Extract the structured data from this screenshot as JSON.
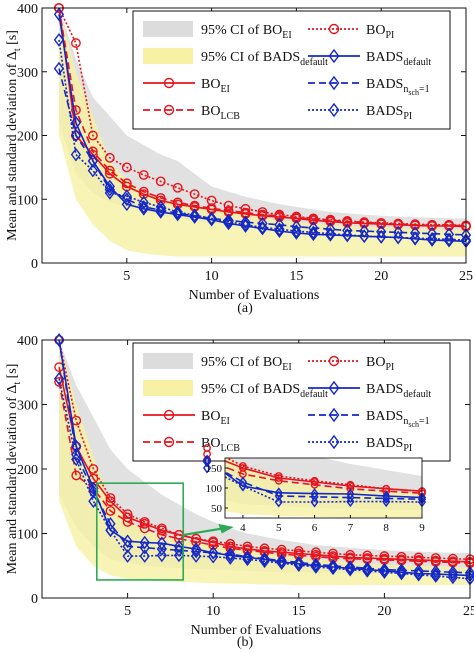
{
  "figure": {
    "panels": [
      {
        "id": "a",
        "caption": "(a)",
        "xlabel": "Number of Evaluations",
        "ylabel_main": "Mean and standard deviation of Δ",
        "ylabel_sub": "t",
        "ylabel_unit": " [s]",
        "xticks": [
          "5",
          "10",
          "15",
          "20",
          "25"
        ],
        "yticks": [
          "0",
          "100",
          "200",
          "300",
          "400"
        ]
      },
      {
        "id": "b",
        "caption": "(b)",
        "xlabel": "Number of Evaluations",
        "ylabel_main": "Mean and standard deviation of Δ",
        "ylabel_sub": "t",
        "ylabel_unit": " [s]",
        "xticks": [
          "5",
          "10",
          "15",
          "20",
          "25"
        ],
        "yticks": [
          "0",
          "100",
          "200",
          "300",
          "400"
        ],
        "inset_xticks": [
          "4",
          "5",
          "6",
          "7",
          "8",
          "9"
        ],
        "inset_yticks": [
          "50",
          "100",
          "150"
        ]
      }
    ],
    "legend": [
      {
        "key": "ci_bo",
        "text": "95% CI of BO",
        "sub": "EI",
        "sup": ""
      },
      {
        "key": "ci_bads",
        "text": "95% CI of BADS",
        "sub": "default",
        "sup": ""
      },
      {
        "key": "bo_ei",
        "text": "BO",
        "sub": "EI",
        "sup": ""
      },
      {
        "key": "bo_lcb",
        "text": "BO",
        "sub": "LCB",
        "sup": ""
      },
      {
        "key": "bo_pi",
        "text": "BO",
        "sub": "PI",
        "sup": ""
      },
      {
        "key": "bads_default",
        "text": "BADS",
        "sub": "default",
        "sup": ""
      },
      {
        "key": "bads_nsch",
        "text": "BADS",
        "sub": "n",
        "sup": "",
        "sub2": "sch",
        "tail": "=1"
      },
      {
        "key": "bads_pi",
        "text": "BADS",
        "sub": "PI",
        "sup": ""
      }
    ],
    "colors": {
      "red": "#e8141c",
      "blue": "#1428c8",
      "ci_bo": "#dcdcdc",
      "ci_bads": "#f6f1a4",
      "inset_box": "#2eaa57",
      "arrow": "#2eaa57"
    }
  },
  "chart_data": [
    {
      "type": "line",
      "panel": "a",
      "xlabel": "Number of Evaluations",
      "ylabel": "Mean and standard deviation of Δt [s]",
      "xlim": [
        0,
        25
      ],
      "ylim": [
        0,
        400
      ],
      "x": [
        1,
        2,
        3,
        4,
        5,
        6,
        7,
        8,
        9,
        10,
        11,
        12,
        13,
        14,
        15,
        16,
        17,
        18,
        19,
        20,
        21,
        22,
        23,
        24,
        25
      ],
      "series": [
        {
          "name": "BO_EI",
          "style": "solid-red-circle",
          "values": [
            400,
            200,
            170,
            140,
            120,
            108,
            98,
            92,
            88,
            84,
            80,
            77,
            74,
            72,
            70,
            67,
            65,
            63,
            62,
            61,
            60,
            59,
            58,
            58,
            57
          ]
        },
        {
          "name": "BO_LCB",
          "style": "dashed-red-circle",
          "values": [
            400,
            240,
            175,
            145,
            125,
            112,
            102,
            95,
            90,
            86,
            82,
            79,
            76,
            74,
            71,
            69,
            67,
            65,
            64,
            62,
            61,
            60,
            59,
            59,
            58
          ]
        },
        {
          "name": "BO_PI",
          "style": "dotted-red-circle",
          "values": [
            400,
            345,
            200,
            165,
            150,
            138,
            128,
            118,
            108,
            98,
            90,
            85,
            80,
            76,
            73,
            70,
            68,
            66,
            64,
            63,
            62,
            61,
            60,
            60,
            59
          ]
        },
        {
          "name": "BADS_default",
          "style": "solid-blue-diamond",
          "values": [
            390,
            220,
            160,
            120,
            92,
            85,
            80,
            76,
            72,
            68,
            62,
            58,
            54,
            50,
            47,
            45,
            44,
            43,
            42,
            41,
            40,
            38,
            36,
            35,
            34
          ]
        },
        {
          "name": "BADS_nsch=1",
          "style": "dashed-blue-diamond",
          "values": [
            305,
            200,
            160,
            115,
            100,
            88,
            83,
            78,
            74,
            70,
            67,
            64,
            62,
            60,
            57,
            55,
            53,
            51,
            50,
            49,
            48,
            47,
            46,
            45,
            44
          ]
        },
        {
          "name": "BADS_PI",
          "style": "dotted-blue-diamond",
          "values": [
            350,
            170,
            145,
            110,
            105,
            95,
            88,
            80,
            75,
            70,
            65,
            60,
            56,
            53,
            50,
            48,
            46,
            44,
            42,
            41,
            40,
            39,
            38,
            37,
            36
          ]
        }
      ],
      "bands": [
        {
          "name": "95% CI of BO_EI",
          "lower": [
            220,
            140,
            110,
            95,
            88,
            80,
            75,
            70,
            66,
            62,
            60,
            58,
            56,
            54,
            52,
            51,
            50,
            49,
            48,
            47,
            47,
            46,
            46,
            45,
            45
          ],
          "upper": [
            400,
            320,
            260,
            230,
            200,
            185,
            170,
            160,
            140,
            120,
            112,
            104,
            98,
            92,
            88,
            84,
            80,
            78,
            76,
            74,
            73,
            72,
            71,
            70,
            70
          ]
        },
        {
          "name": "95% CI of BADS_default",
          "lower": [
            200,
            100,
            60,
            35,
            20,
            15,
            12,
            10,
            10,
            10,
            10,
            10,
            10,
            10,
            10,
            10,
            10,
            10,
            10,
            10,
            10,
            10,
            10,
            10,
            10
          ],
          "upper": [
            400,
            300,
            230,
            160,
            130,
            110,
            100,
            92,
            88,
            84,
            80,
            76,
            72,
            68,
            65,
            62,
            60,
            58,
            57,
            56,
            55,
            54,
            53,
            52,
            52
          ]
        }
      ]
    },
    {
      "type": "line",
      "panel": "b",
      "xlabel": "Number of Evaluations",
      "ylabel": "Mean and standard deviation of Δt [s]",
      "xlim": [
        0,
        25
      ],
      "ylim": [
        0,
        400
      ],
      "x": [
        1,
        2,
        3,
        4,
        5,
        6,
        7,
        8,
        9,
        10,
        11,
        12,
        13,
        14,
        15,
        16,
        17,
        18,
        19,
        20,
        21,
        22,
        23,
        24,
        25
      ],
      "series": [
        {
          "name": "BO_EI",
          "style": "solid-red-circle",
          "values": [
            358,
            235,
            185,
            150,
            125,
            115,
            105,
            98,
            92,
            86,
            80,
            76,
            73,
            71,
            69,
            67,
            65,
            63,
            62,
            61,
            60,
            59,
            58,
            57,
            56
          ]
        },
        {
          "name": "BO_LCB",
          "style": "dashed-red-circle",
          "values": [
            335,
            190,
            170,
            135,
            118,
            108,
            98,
            92,
            87,
            82,
            77,
            74,
            71,
            68,
            66,
            64,
            62,
            61,
            60,
            59,
            58,
            57,
            56,
            55,
            54
          ]
        },
        {
          "name": "BO_PI",
          "style": "dotted-red-circle",
          "values": [
            400,
            275,
            200,
            155,
            130,
            118,
            108,
            98,
            92,
            88,
            84,
            80,
            77,
            75,
            73,
            71,
            69,
            67,
            66,
            65,
            64,
            63,
            62,
            61,
            60
          ]
        },
        {
          "name": "BADS_default",
          "style": "solid-blue-diamond",
          "values": [
            400,
            235,
            170,
            105,
            88,
            86,
            85,
            80,
            76,
            70,
            66,
            63,
            60,
            56,
            53,
            50,
            48,
            46,
            44,
            42,
            40,
            38,
            37,
            36,
            35
          ]
        },
        {
          "name": "BADS_nsch=1",
          "style": "dashed-blue-diamond",
          "values": [
            400,
            222,
            165,
            115,
            80,
            78,
            76,
            74,
            72,
            70,
            68,
            64,
            61,
            58,
            55,
            52,
            50,
            48,
            46,
            44,
            43,
            42,
            41,
            40,
            39
          ]
        },
        {
          "name": "BADS_PI",
          "style": "dotted-blue-diamond",
          "values": [
            340,
            215,
            150,
            105,
            65,
            65,
            66,
            66,
            65,
            64,
            62,
            60,
            57,
            54,
            51,
            48,
            46,
            44,
            42,
            40,
            38,
            36,
            34,
            32,
            30
          ]
        }
      ],
      "bands": [
        {
          "name": "95% CI of BO_EI",
          "lower": [
            160,
            110,
            80,
            60,
            55,
            50,
            48,
            46,
            45,
            44,
            43,
            42,
            41,
            40,
            40,
            39,
            39,
            38,
            38,
            37,
            37,
            36,
            36,
            35,
            35
          ],
          "upper": [
            400,
            330,
            280,
            230,
            200,
            180,
            160,
            145,
            130,
            118,
            108,
            100,
            95,
            90,
            86,
            82,
            80,
            78,
            76,
            74,
            73,
            72,
            71,
            70,
            70
          ]
        },
        {
          "name": "95% CI of BADS_default",
          "lower": [
            150,
            80,
            50,
            35,
            30,
            28,
            26,
            25,
            24,
            23,
            22,
            22,
            21,
            21,
            20,
            20,
            20,
            20,
            20,
            20,
            20,
            20,
            20,
            20,
            20
          ],
          "upper": [
            400,
            300,
            220,
            150,
            120,
            105,
            95,
            90,
            86,
            82,
            78,
            74,
            70,
            66,
            63,
            60,
            58,
            56,
            54,
            52,
            51,
            50,
            49,
            48,
            47
          ]
        }
      ]
    }
  ]
}
